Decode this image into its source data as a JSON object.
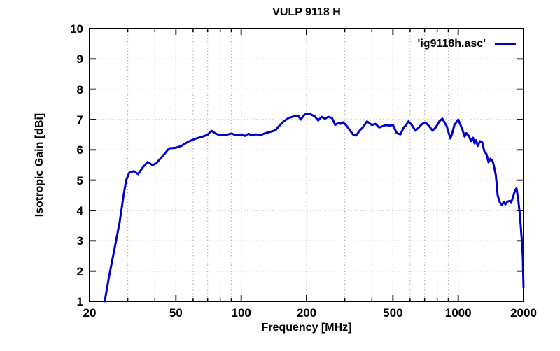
{
  "colors": {
    "line": "#0000cc",
    "grid": "#b5b5b5",
    "frame": "#000000",
    "background": "#ffffff",
    "text": "#000000"
  },
  "legend": {
    "position": "top-right",
    "entries": [
      "'ig9118h.asc'"
    ]
  },
  "chart_data": {
    "type": "line",
    "title": "VULP 9118 H",
    "xlabel": "Frequency [MHz]",
    "ylabel": "Isotropic Gain [dBi]",
    "x_scale": "log",
    "xlim": [
      20,
      2000
    ],
    "ylim": [
      1,
      10
    ],
    "x_major_ticks": [
      20,
      50,
      100,
      200,
      500,
      1000,
      2000
    ],
    "x_minor_ticks": [
      30,
      40,
      60,
      70,
      80,
      90,
      300,
      400,
      600,
      700,
      800,
      900
    ],
    "y_ticks": [
      1,
      2,
      3,
      4,
      5,
      6,
      7,
      8,
      9,
      10
    ],
    "grid": true,
    "legend_position": "top-right",
    "series": [
      {
        "name": "'ig9118h.asc'",
        "color": "#0000cc",
        "points": [
          [
            23.5,
            1.0
          ],
          [
            24.5,
            1.75
          ],
          [
            26,
            2.7
          ],
          [
            27.5,
            3.6
          ],
          [
            28.7,
            4.5
          ],
          [
            29.5,
            5.0
          ],
          [
            30.5,
            5.25
          ],
          [
            32,
            5.3
          ],
          [
            33.5,
            5.2
          ],
          [
            35,
            5.4
          ],
          [
            37,
            5.6
          ],
          [
            39,
            5.5
          ],
          [
            40.5,
            5.55
          ],
          [
            43.5,
            5.8
          ],
          [
            46.5,
            6.05
          ],
          [
            50,
            6.07
          ],
          [
            53,
            6.13
          ],
          [
            57,
            6.27
          ],
          [
            61,
            6.36
          ],
          [
            66,
            6.43
          ],
          [
            70,
            6.5
          ],
          [
            73,
            6.63
          ],
          [
            76,
            6.54
          ],
          [
            80,
            6.48
          ],
          [
            85,
            6.49
          ],
          [
            90,
            6.54
          ],
          [
            94,
            6.49
          ],
          [
            100,
            6.51
          ],
          [
            104,
            6.46
          ],
          [
            108,
            6.53
          ],
          [
            112,
            6.48
          ],
          [
            117,
            6.51
          ],
          [
            123,
            6.49
          ],
          [
            129,
            6.55
          ],
          [
            137,
            6.6
          ],
          [
            144,
            6.65
          ],
          [
            149,
            6.78
          ],
          [
            157,
            6.94
          ],
          [
            165,
            7.05
          ],
          [
            176,
            7.11
          ],
          [
            183,
            7.13
          ],
          [
            188,
            7.0
          ],
          [
            195,
            7.15
          ],
          [
            200,
            7.2
          ],
          [
            209,
            7.17
          ],
          [
            218,
            7.11
          ],
          [
            226,
            6.97
          ],
          [
            235,
            7.09
          ],
          [
            243,
            7.03
          ],
          [
            252,
            7.09
          ],
          [
            262,
            7.05
          ],
          [
            271,
            6.82
          ],
          [
            281,
            6.9
          ],
          [
            287,
            6.86
          ],
          [
            294,
            6.91
          ],
          [
            300,
            6.86
          ],
          [
            307,
            6.78
          ],
          [
            315,
            6.67
          ],
          [
            327,
            6.51
          ],
          [
            338,
            6.47
          ],
          [
            350,
            6.62
          ],
          [
            362,
            6.73
          ],
          [
            380,
            6.94
          ],
          [
            400,
            6.82
          ],
          [
            415,
            6.86
          ],
          [
            432,
            6.74
          ],
          [
            448,
            6.78
          ],
          [
            464,
            6.82
          ],
          [
            482,
            6.8
          ],
          [
            500,
            6.82
          ],
          [
            521,
            6.55
          ],
          [
            541,
            6.51
          ],
          [
            561,
            6.74
          ],
          [
            575,
            6.82
          ],
          [
            590,
            6.94
          ],
          [
            611,
            6.82
          ],
          [
            635,
            6.63
          ],
          [
            658,
            6.74
          ],
          [
            683,
            6.86
          ],
          [
            708,
            6.9
          ],
          [
            735,
            6.78
          ],
          [
            762,
            6.63
          ],
          [
            790,
            6.75
          ],
          [
            818,
            6.94
          ],
          [
            845,
            7.03
          ],
          [
            885,
            6.78
          ],
          [
            905,
            6.55
          ],
          [
            920,
            6.38
          ],
          [
            935,
            6.51
          ],
          [
            960,
            6.82
          ],
          [
            1000,
            7.0
          ],
          [
            1025,
            6.82
          ],
          [
            1050,
            6.63
          ],
          [
            1070,
            6.44
          ],
          [
            1090,
            6.55
          ],
          [
            1120,
            6.46
          ],
          [
            1145,
            6.29
          ],
          [
            1170,
            6.4
          ],
          [
            1190,
            6.21
          ],
          [
            1210,
            6.32
          ],
          [
            1230,
            6.13
          ],
          [
            1260,
            6.29
          ],
          [
            1290,
            6.25
          ],
          [
            1320,
            5.94
          ],
          [
            1350,
            5.86
          ],
          [
            1380,
            5.59
          ],
          [
            1410,
            5.71
          ],
          [
            1440,
            5.63
          ],
          [
            1460,
            5.48
          ],
          [
            1490,
            5.17
          ],
          [
            1520,
            4.48
          ],
          [
            1560,
            4.25
          ],
          [
            1590,
            4.18
          ],
          [
            1620,
            4.28
          ],
          [
            1650,
            4.2
          ],
          [
            1685,
            4.29
          ],
          [
            1730,
            4.32
          ],
          [
            1750,
            4.25
          ],
          [
            1790,
            4.45
          ],
          [
            1825,
            4.65
          ],
          [
            1855,
            4.73
          ],
          [
            1890,
            4.36
          ],
          [
            1915,
            3.98
          ],
          [
            1940,
            3.52
          ],
          [
            1965,
            2.98
          ],
          [
            1985,
            2.44
          ],
          [
            2000,
            1.45
          ]
        ]
      }
    ]
  }
}
